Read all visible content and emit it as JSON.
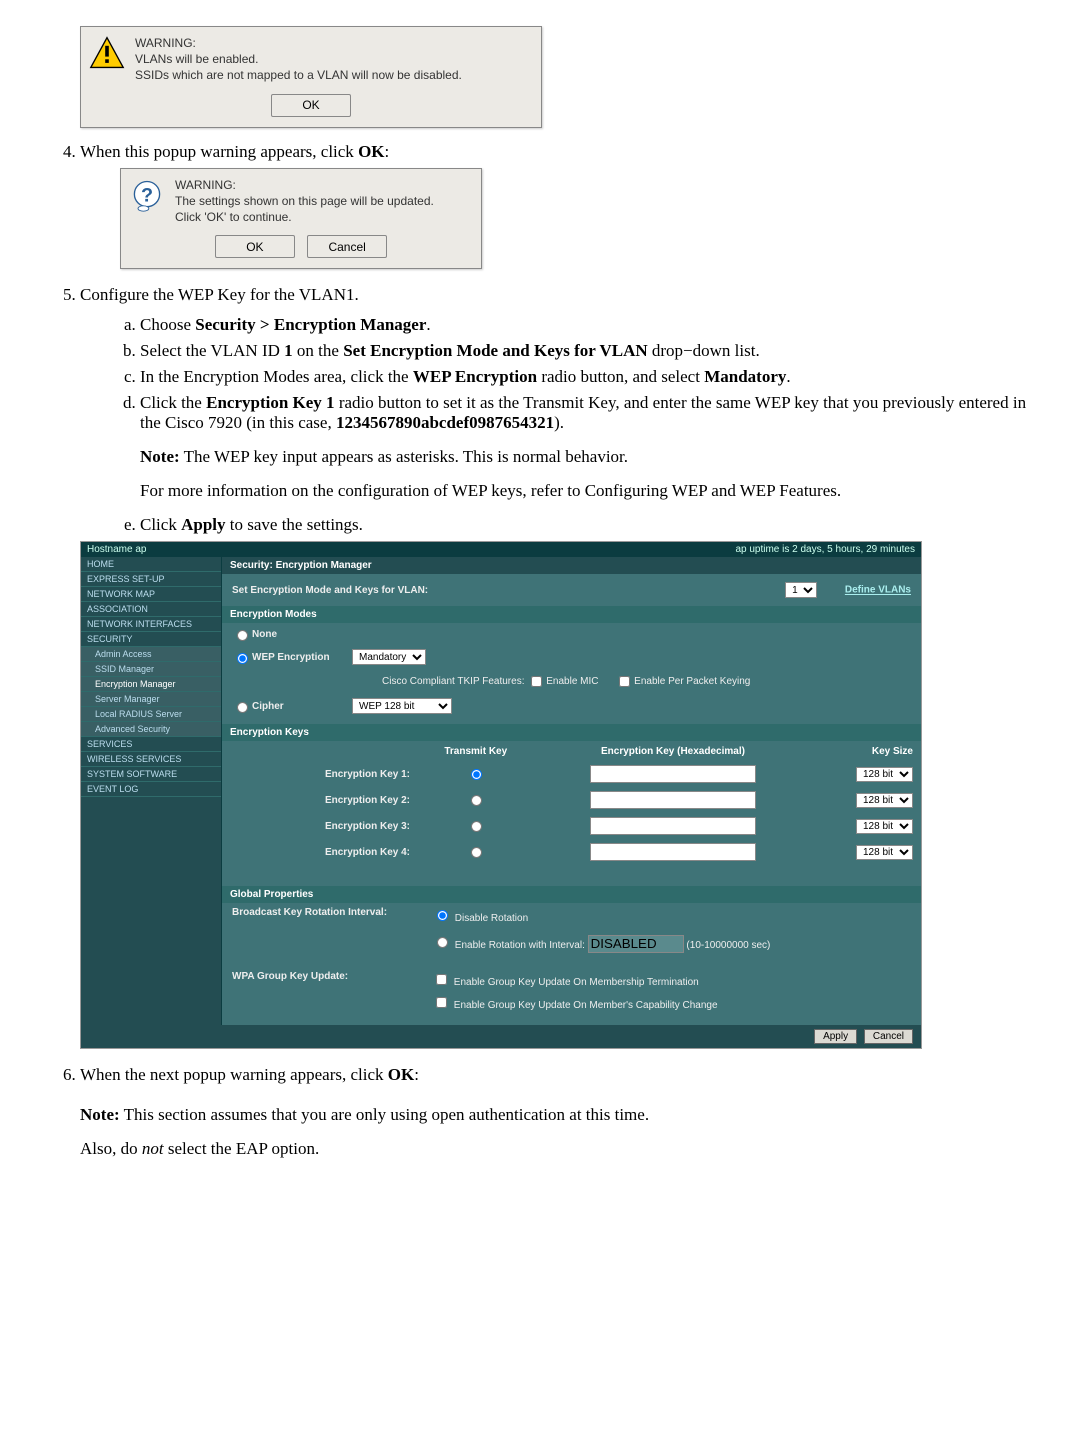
{
  "dialog1": {
    "title": "WARNING:",
    "line1": "VLANs will be enabled.",
    "line2": "SSIDs which are not mapped to a VLAN will now be disabled.",
    "ok": "OK"
  },
  "step4": "When this popup warning appears, click ",
  "step4_bold": "OK",
  "step4_end": ":",
  "dialog2": {
    "title": "WARNING:",
    "line1": "The settings shown on this page will be updated.",
    "line2": "Click 'OK' to continue.",
    "ok": "OK",
    "cancel": "Cancel"
  },
  "step5": "Configure the WEP Key for the VLAN1.",
  "step5a_pre": "Choose ",
  "step5a_bold": "Security > Encryption Manager",
  "step5a_post": ".",
  "step5b_1": "Select the VLAN ID ",
  "step5b_2": "1",
  "step5b_3": " on the ",
  "step5b_4": "Set Encryption Mode and Keys for VLAN",
  "step5b_5": " drop−down list.",
  "step5c_1": "In the Encryption Modes area, click the ",
  "step5c_2": "WEP Encryption",
  "step5c_3": " radio button, and select ",
  "step5c_4": "Mandatory",
  "step5c_5": ".",
  "step5d_1": "Click the ",
  "step5d_2": "Encryption Key 1",
  "step5d_3": " radio button to set it as the Transmit Key, and enter the same WEP key that you previously entered in the Cisco 7920 (in this case, ",
  "step5d_4": "1234567890abcdef0987654321",
  "step5d_5": ").",
  "note1_label": "Note:",
  "note1_text": " The WEP key input appears as asterisks. This is normal behavior.",
  "more_info": "For more information on the configuration of WEP keys, refer to Configuring WEP and WEP Features.",
  "step5e_1": "Click ",
  "step5e_2": "Apply",
  "step5e_3": " to save the settings.",
  "screenshot": {
    "hostname_label": "Hostname ap",
    "uptime": "ap uptime is 2 days, 5 hours, 29 minutes",
    "sidebar": {
      "items": [
        {
          "label": "HOME"
        },
        {
          "label": "EXPRESS SET-UP"
        },
        {
          "label": "NETWORK MAP"
        },
        {
          "label": "ASSOCIATION"
        },
        {
          "label": "NETWORK INTERFACES"
        },
        {
          "label": "SECURITY"
        }
      ],
      "subitems": [
        {
          "label": "Admin Access"
        },
        {
          "label": "SSID Manager"
        },
        {
          "label": "Encryption Manager",
          "selected": true
        },
        {
          "label": "Server Manager"
        },
        {
          "label": "Local RADIUS Server"
        },
        {
          "label": "Advanced Security"
        }
      ],
      "items2": [
        {
          "label": "SERVICES"
        },
        {
          "label": "WIRELESS SERVICES"
        },
        {
          "label": "SYSTEM SOFTWARE"
        },
        {
          "label": "EVENT LOG"
        }
      ]
    },
    "panel_title": "Security: Encryption Manager",
    "set_mode_label": "Set Encryption Mode and Keys for VLAN:",
    "vlan_select": "1",
    "define_vlans": "Define VLANs",
    "modes_title": "Encryption Modes",
    "mode_none": "None",
    "mode_wep": "WEP Encryption",
    "wep_select": "Mandatory",
    "tkip_label": "Cisco Compliant TKIP Features:",
    "tkip_mic": "Enable MIC",
    "tkip_ppk": "Enable Per Packet Keying",
    "mode_cipher": "Cipher",
    "cipher_select": "WEP 128 bit",
    "keys_title": "Encryption Keys",
    "col_transmit": "Transmit Key",
    "col_hex": "Encryption Key (Hexadecimal)",
    "col_size": "Key Size",
    "key_rows": [
      {
        "label": "Encryption Key 1:",
        "size": "128 bit"
      },
      {
        "label": "Encryption Key 2:",
        "size": "128 bit"
      },
      {
        "label": "Encryption Key 3:",
        "size": "128 bit"
      },
      {
        "label": "Encryption Key 4:",
        "size": "128 bit"
      }
    ],
    "global_title": "Global Properties",
    "bcast_label": "Broadcast Key Rotation Interval:",
    "bcast_disable": "Disable Rotation",
    "bcast_enable_pre": "Enable Rotation with Interval:",
    "bcast_enable_val": "DISABLED",
    "bcast_enable_post": "(10-10000000 sec)",
    "wpa_label": "WPA Group Key Update:",
    "wpa_opt1": "Enable Group Key Update On Membership Termination",
    "wpa_opt2": "Enable Group Key Update On Member's Capability Change",
    "apply": "Apply",
    "cancel": "Cancel"
  },
  "step6_1": "When the next popup warning appears, click ",
  "step6_2": "OK",
  "step6_3": ":",
  "note2_label": "Note:",
  "note2_text": " This section assumes that you are only using open authentication at this time.",
  "also_1": "Also, do ",
  "also_2": "not",
  "also_3": " select the EAP option."
}
